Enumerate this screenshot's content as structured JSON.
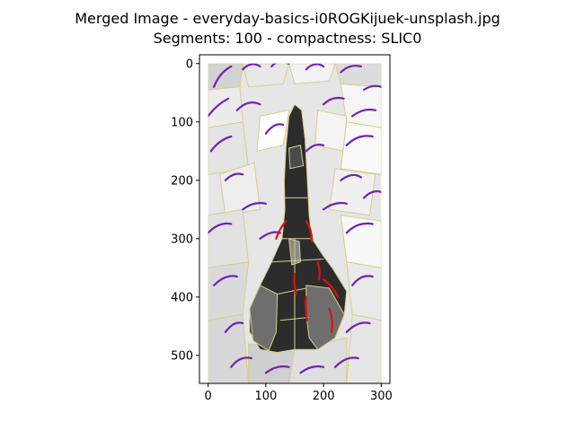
{
  "chart_data": {
    "type": "image",
    "title": "Merged Image - everyday-basics-i0ROGKijuek-unsplash.jpg",
    "subtitle": "Segments: 100 - compactness: SLIC0",
    "xlabel": "",
    "ylabel": "",
    "xlim": [
      -15,
      315
    ],
    "ylim": [
      548,
      -15
    ],
    "y_inverted": true,
    "x_ticks": [
      0,
      100,
      200,
      300
    ],
    "y_ticks": [
      0,
      100,
      200,
      300,
      400,
      500
    ],
    "image_extent": {
      "x": [
        0,
        300
      ],
      "y": [
        0,
        548
      ]
    },
    "colors": {
      "background_light": "#e6e6e6",
      "dark_object": "#2c2c2c",
      "mid_gray": "#6e6e6e",
      "segment_border": "#d6cf8a",
      "purple_curves": "#7322b3",
      "red_curves": "#e01010"
    }
  }
}
